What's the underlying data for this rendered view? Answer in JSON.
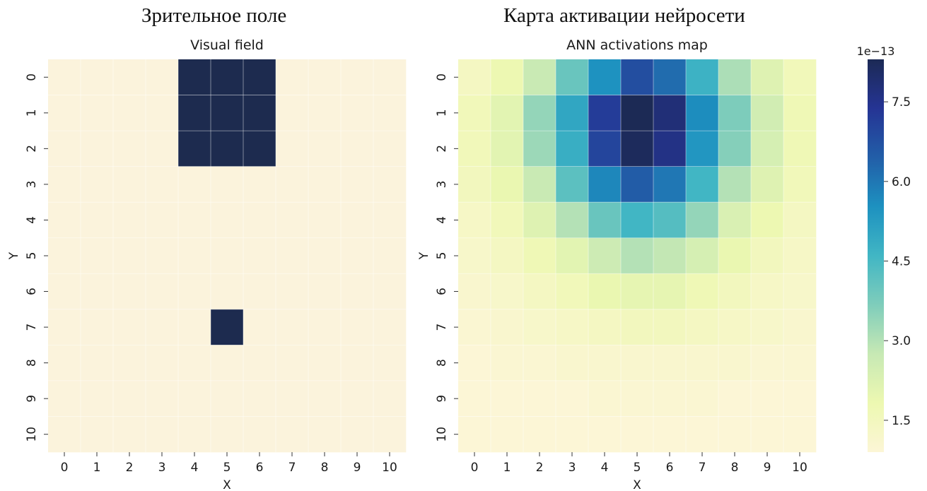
{
  "captions": {
    "left": "Зрительное поле",
    "right": "Карта активации нейросети"
  },
  "chart_data": [
    {
      "type": "heatmap",
      "title": "Visual field",
      "xlabel": "X",
      "ylabel": "Y",
      "x_ticks": [
        "0",
        "1",
        "2",
        "3",
        "4",
        "5",
        "6",
        "7",
        "8",
        "9",
        "10"
      ],
      "y_ticks": [
        "0",
        "1",
        "2",
        "3",
        "4",
        "5",
        "6",
        "7",
        "8",
        "9",
        "10"
      ],
      "values": [
        [
          0,
          0,
          0,
          0,
          1,
          1,
          1,
          0,
          0,
          0,
          0
        ],
        [
          0,
          0,
          0,
          0,
          1,
          1,
          1,
          0,
          0,
          0,
          0
        ],
        [
          0,
          0,
          0,
          0,
          1,
          1,
          1,
          0,
          0,
          0,
          0
        ],
        [
          0,
          0,
          0,
          0,
          0,
          0,
          0,
          0,
          0,
          0,
          0
        ],
        [
          0,
          0,
          0,
          0,
          0,
          0,
          0,
          0,
          0,
          0,
          0
        ],
        [
          0,
          0,
          0,
          0,
          0,
          0,
          0,
          0,
          0,
          0,
          0
        ],
        [
          0,
          0,
          0,
          0,
          0,
          0,
          0,
          0,
          0,
          0,
          0
        ],
        [
          0,
          0,
          0,
          0,
          0,
          1,
          0,
          0,
          0,
          0,
          0
        ],
        [
          0,
          0,
          0,
          0,
          0,
          0,
          0,
          0,
          0,
          0,
          0
        ],
        [
          0,
          0,
          0,
          0,
          0,
          0,
          0,
          0,
          0,
          0,
          0
        ],
        [
          0,
          0,
          0,
          0,
          0,
          0,
          0,
          0,
          0,
          0,
          0
        ]
      ],
      "colors": {
        "off": "#fbf3dc",
        "on": "#1d2b4f"
      },
      "grid": true,
      "colorbar": false
    },
    {
      "type": "heatmap",
      "title": "ANN activations map",
      "xlabel": "X",
      "ylabel": "Y",
      "x_ticks": [
        "0",
        "1",
        "2",
        "3",
        "4",
        "5",
        "6",
        "7",
        "8",
        "9",
        "10"
      ],
      "y_ticks": [
        "0",
        "1",
        "2",
        "3",
        "4",
        "5",
        "6",
        "7",
        "8",
        "9",
        "10"
      ],
      "unit_label": "1e−13",
      "values": [
        [
          1.4,
          1.8,
          2.7,
          4.0,
          5.5,
          6.8,
          6.2,
          4.7,
          3.1,
          2.2,
          1.6
        ],
        [
          1.6,
          2.1,
          3.4,
          5.0,
          7.2,
          8.3,
          7.8,
          5.6,
          3.7,
          2.5,
          1.7
        ],
        [
          1.6,
          2.1,
          3.3,
          4.8,
          7.0,
          8.2,
          7.6,
          5.4,
          3.6,
          2.4,
          1.7
        ],
        [
          1.5,
          1.9,
          2.7,
          4.2,
          5.7,
          6.5,
          6.0,
          4.6,
          3.0,
          2.2,
          1.6
        ],
        [
          1.3,
          1.6,
          2.2,
          3.0,
          4.0,
          4.6,
          4.3,
          3.4,
          2.3,
          1.8,
          1.4
        ],
        [
          1.2,
          1.4,
          1.7,
          2.1,
          2.6,
          3.0,
          2.8,
          2.4,
          1.9,
          1.5,
          1.3
        ],
        [
          1.1,
          1.2,
          1.4,
          1.6,
          1.9,
          2.0,
          2.0,
          1.7,
          1.5,
          1.3,
          1.2
        ],
        [
          1.0,
          1.1,
          1.2,
          1.3,
          1.4,
          1.5,
          1.5,
          1.4,
          1.3,
          1.2,
          1.1
        ],
        [
          0.9,
          1.0,
          1.0,
          1.1,
          1.1,
          1.1,
          1.1,
          1.1,
          1.1,
          1.0,
          1.0
        ],
        [
          0.9,
          0.9,
          0.9,
          0.9,
          1.0,
          1.0,
          1.0,
          1.0,
          0.9,
          0.9,
          0.9
        ],
        [
          0.9,
          0.9,
          0.9,
          0.9,
          0.9,
          0.9,
          0.9,
          0.9,
          0.9,
          0.9,
          0.9
        ]
      ],
      "colorbar": {
        "min": 0.9,
        "max": 8.3,
        "ticks": [
          {
            "value": 1.5,
            "label": "1.5"
          },
          {
            "value": 3.0,
            "label": "3.0"
          },
          {
            "value": 4.5,
            "label": "4.5"
          },
          {
            "value": 6.0,
            "label": "6.0"
          },
          {
            "value": 7.5,
            "label": "7.5"
          }
        ],
        "colormap": "YlGnBu",
        "stops": [
          "#fcf6d6",
          "#edf8b1",
          "#c7e9b4",
          "#7fcdbb",
          "#41b6c4",
          "#1d91c0",
          "#225ea8",
          "#253494",
          "#1c2a55"
        ]
      },
      "grid": true
    }
  ]
}
